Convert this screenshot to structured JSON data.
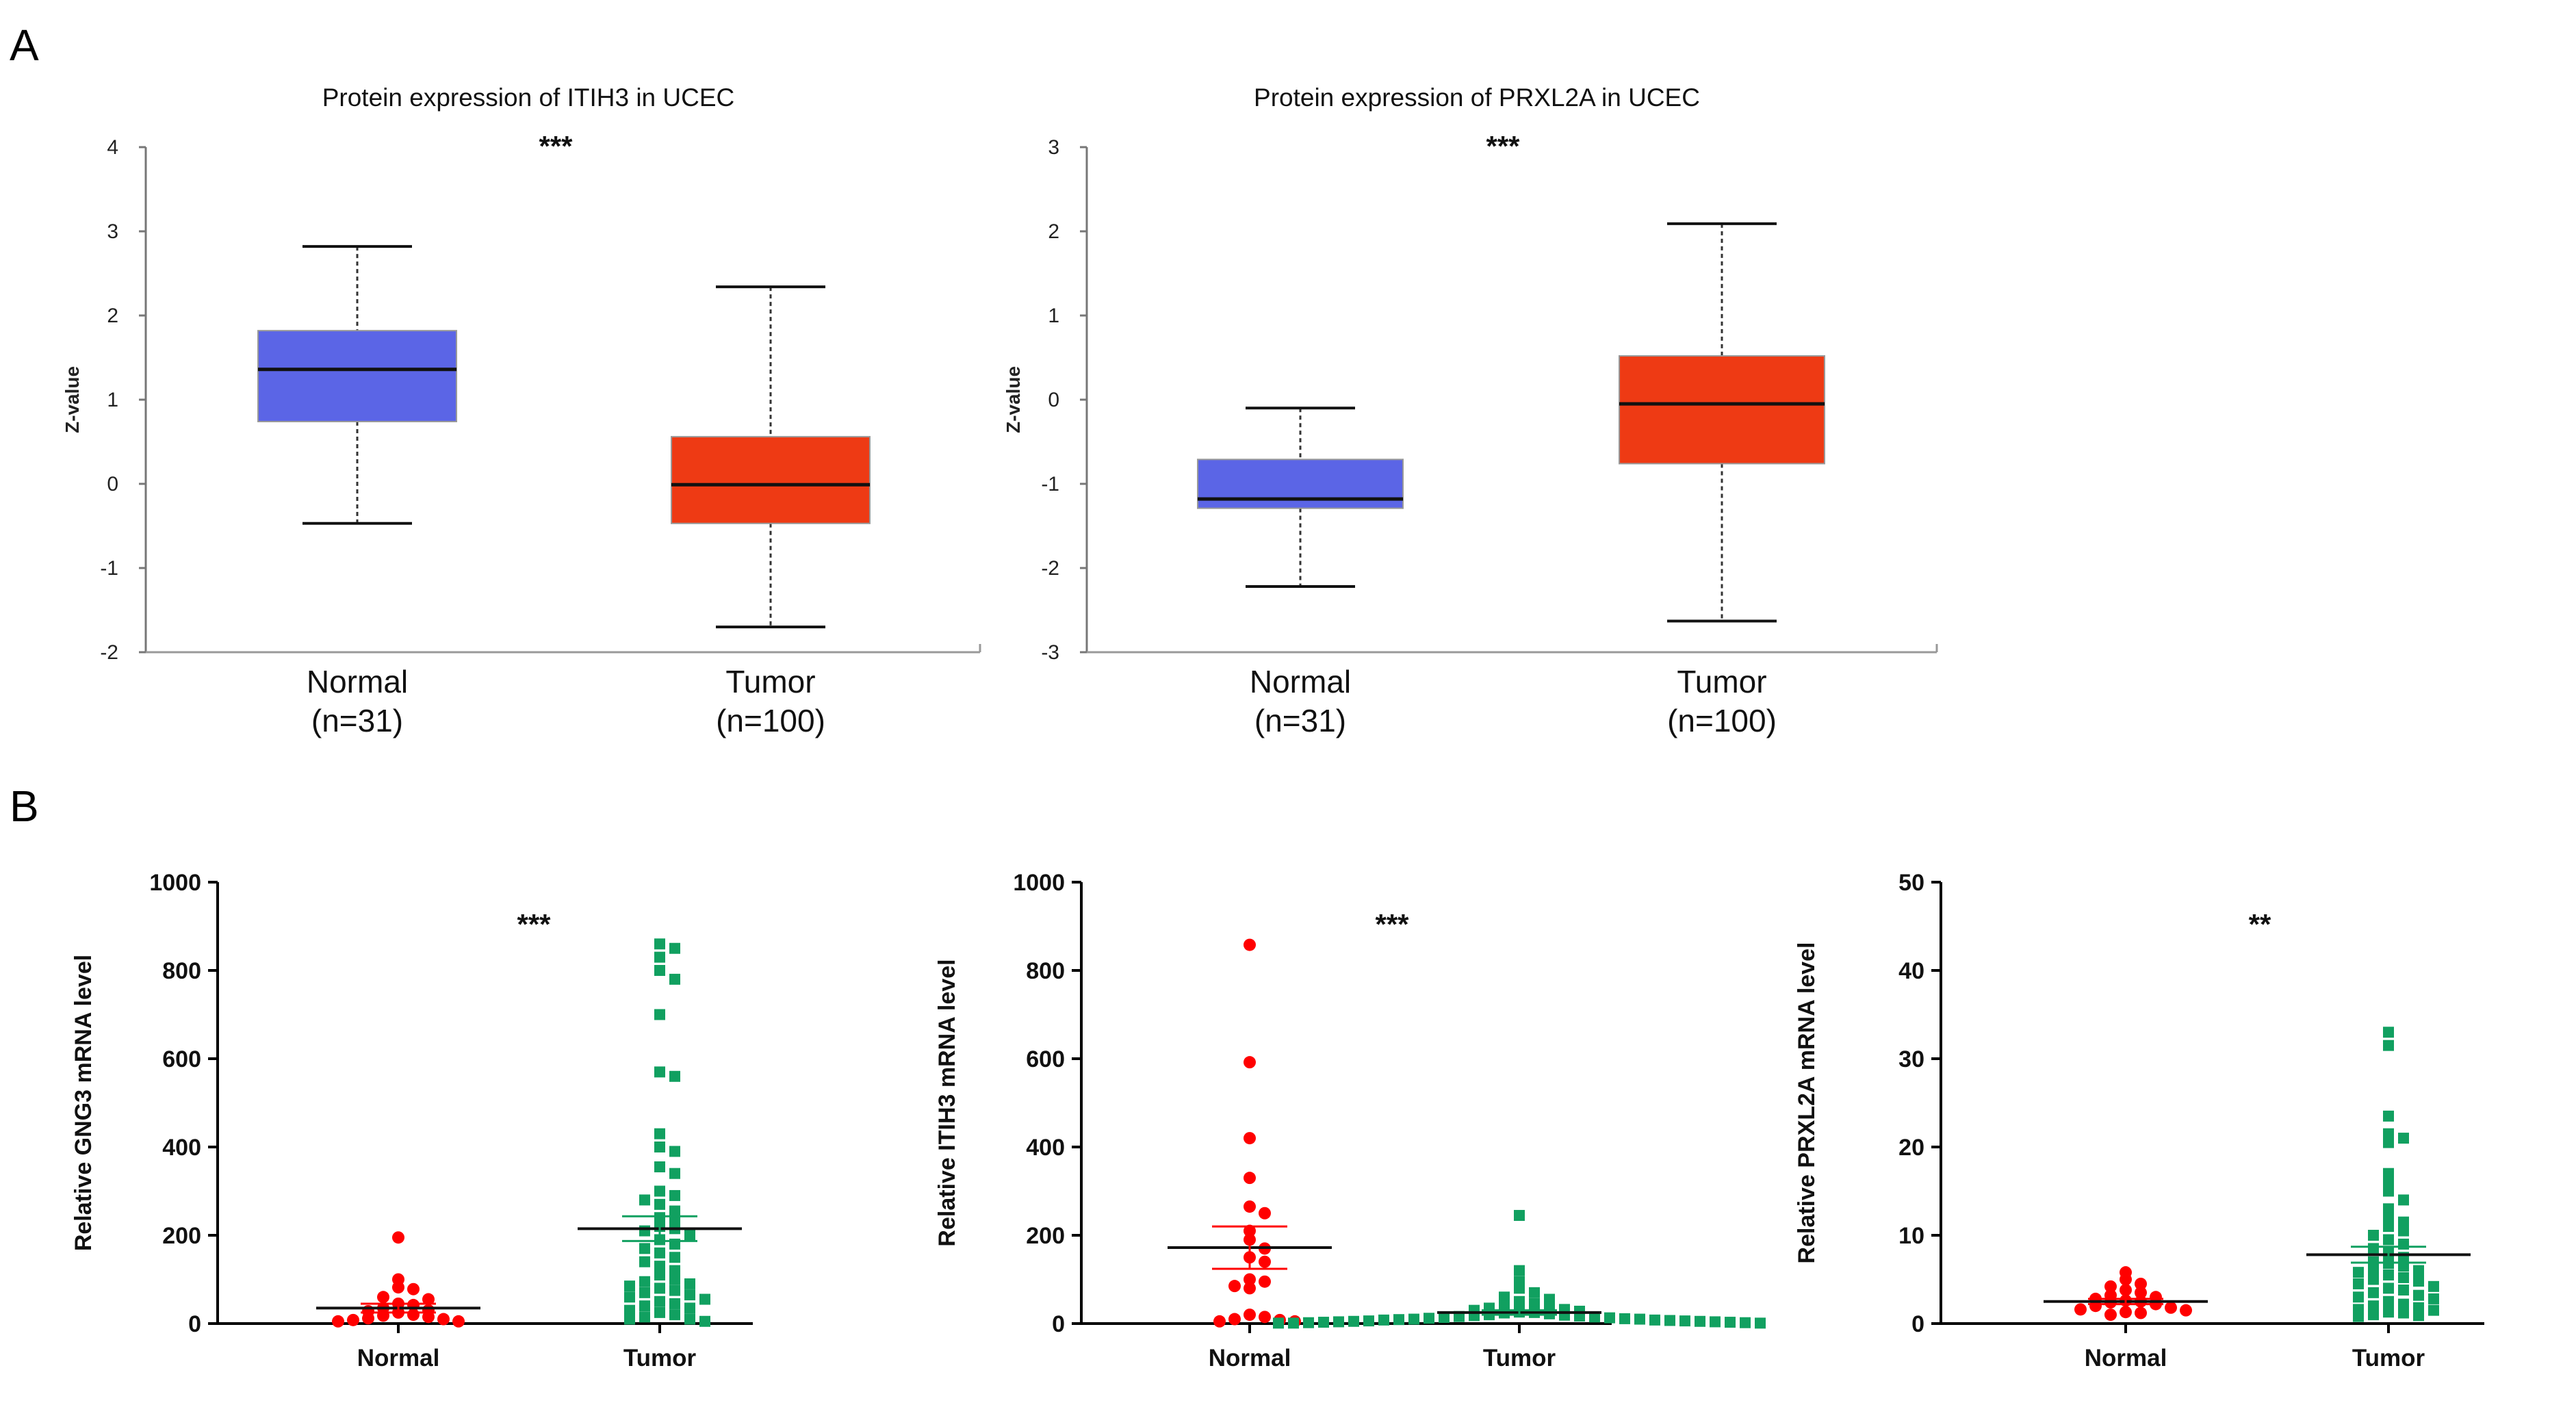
{
  "panels": {
    "a": "A",
    "b": "B"
  },
  "chart_data": [
    {
      "type": "boxplot",
      "panel": "A",
      "title": "Protein expression of ITIH3 in UCEC",
      "ylabel": "Z-value",
      "ylim": [
        -2,
        4
      ],
      "yticks": [
        4,
        3,
        2,
        1,
        0,
        -1,
        -2
      ],
      "significance": "***",
      "groups": [
        {
          "name": "Normal",
          "n_label": "(n=31)",
          "color": "#5b65e6",
          "min": -0.47,
          "q1": 0.74,
          "median": 1.36,
          "q3": 1.82,
          "max": 2.82
        },
        {
          "name": "Tumor",
          "n_label": "(n=100)",
          "color": "#ee3a14",
          "min": -1.7,
          "q1": -0.47,
          "median": -0.01,
          "q3": 0.56,
          "max": 2.34
        }
      ]
    },
    {
      "type": "boxplot",
      "panel": "A",
      "title": "Protein expression of PRXL2A in UCEC",
      "ylabel": "Z-value",
      "ylim": [
        -3,
        3
      ],
      "yticks": [
        3,
        2,
        1,
        0,
        -1,
        -2,
        -3
      ],
      "significance": "***",
      "groups": [
        {
          "name": "Normal",
          "n_label": "(n=31)",
          "color": "#5b65e6",
          "min": -2.22,
          "q1": -1.29,
          "median": -1.18,
          "q3": -0.71,
          "max": -0.1
        },
        {
          "name": "Tumor",
          "n_label": "(n=100)",
          "color": "#ee3a14",
          "min": -2.63,
          "q1": -0.76,
          "median": -0.05,
          "q3": 0.52,
          "max": 2.09
        }
      ]
    },
    {
      "type": "scatter",
      "panel": "B",
      "ylabel": "Relative GNG3 mRNA level",
      "ylim": [
        0,
        1000
      ],
      "yticks": [
        1000,
        800,
        600,
        400,
        200,
        0
      ],
      "significance": "***",
      "groups": [
        {
          "name": "Normal",
          "color": "#ff0000",
          "marker": "circle",
          "mean": 35,
          "sem": 10,
          "values": [
            195,
            100,
            82,
            78,
            60,
            55,
            45,
            42,
            35,
            30,
            28,
            25,
            20,
            18,
            15,
            12,
            10,
            8,
            5,
            5
          ]
        },
        {
          "name": "Tumor",
          "color": "#11a060",
          "marker": "square",
          "mean": 215,
          "sem": 28,
          "values": [
            860,
            850,
            830,
            800,
            780,
            700,
            570,
            560,
            430,
            400,
            390,
            355,
            340,
            300,
            290,
            280,
            270,
            255,
            240,
            230,
            220,
            215,
            210,
            200,
            190,
            180,
            170,
            160,
            150,
            140,
            130,
            120,
            110,
            100,
            95,
            90,
            85,
            80,
            75,
            70,
            65,
            60,
            55,
            50,
            45,
            40,
            35,
            30,
            25,
            20,
            15,
            10,
            10,
            5
          ]
        }
      ]
    },
    {
      "type": "scatter",
      "panel": "B",
      "ylabel": "Relative ITIH3 mRNA level",
      "ylim": [
        0,
        1000
      ],
      "yticks": [
        1000,
        800,
        600,
        400,
        200,
        0
      ],
      "significance": "***",
      "groups": [
        {
          "name": "Normal",
          "color": "#ff0000",
          "marker": "circle",
          "mean": 172,
          "sem": 48,
          "values": [
            858,
            592,
            420,
            330,
            265,
            250,
            210,
            190,
            170,
            150,
            140,
            100,
            95,
            85,
            80,
            20,
            15,
            10,
            8,
            5,
            5
          ]
        },
        {
          "name": "Tumor",
          "color": "#11a060",
          "marker": "square",
          "mean": 25,
          "sem": 5,
          "values": [
            245,
            120,
            95,
            80,
            70,
            60,
            55,
            50,
            45,
            40,
            38,
            35,
            32,
            30,
            28,
            26,
            25,
            24,
            22,
            20,
            19,
            18,
            17,
            16,
            15,
            14,
            13,
            12,
            11,
            10,
            10,
            9,
            8,
            8,
            7,
            6,
            6,
            5,
            5,
            4,
            4,
            3,
            3,
            2,
            2,
            1,
            1,
            1
          ]
        }
      ]
    },
    {
      "type": "scatter",
      "panel": "B",
      "ylabel": "Relative PRXL2A mRNA level",
      "ylim": [
        0,
        50
      ],
      "yticks": [
        50,
        40,
        30,
        20,
        10,
        0
      ],
      "significance": "**",
      "groups": [
        {
          "name": "Normal",
          "color": "#ff0000",
          "marker": "circle",
          "mean": 2.5,
          "sem": 0.3,
          "values": [
            5.8,
            5.0,
            4.5,
            4.2,
            3.8,
            3.5,
            3.2,
            3.0,
            2.8,
            2.6,
            2.5,
            2.4,
            2.2,
            2.0,
            1.8,
            1.6,
            1.5,
            1.3,
            1.2,
            1.0
          ]
        },
        {
          "name": "Tumor",
          "color": "#11a060",
          "marker": "square",
          "mean": 7.8,
          "sem": 0.9,
          "values": [
            33,
            31.5,
            23.5,
            21.5,
            21,
            20.5,
            17,
            16,
            15,
            14,
            13,
            12,
            11.5,
            11,
            10.5,
            10,
            9.5,
            9,
            8.5,
            8,
            7.5,
            7,
            6.8,
            6.5,
            6.2,
            6,
            5.8,
            5.5,
            5.2,
            5,
            4.8,
            4.5,
            4.2,
            4,
            3.8,
            3.5,
            3.2,
            3,
            2.8,
            2.5,
            2.2,
            2,
            1.8,
            1.6,
            1.5,
            1.3,
            1.2,
            1,
            0.9,
            0.8
          ]
        }
      ]
    }
  ]
}
